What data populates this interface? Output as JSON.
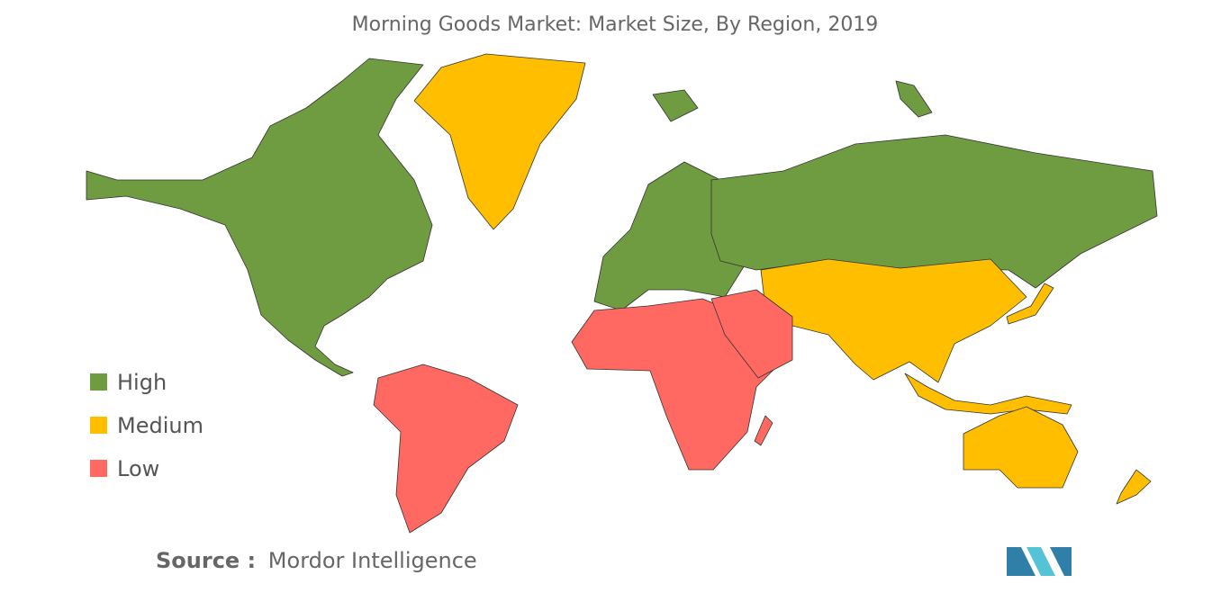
{
  "title": "Morning Goods Market: Market Size, By Region, 2019",
  "legend": [
    {
      "label": "High",
      "color": "#6f9c40"
    },
    {
      "label": "Medium",
      "color": "#ffbf00"
    },
    {
      "label": "Low",
      "color": "#ff6961"
    }
  ],
  "source": {
    "label": "Source :",
    "text": "Mordor Intelligence"
  }
}
